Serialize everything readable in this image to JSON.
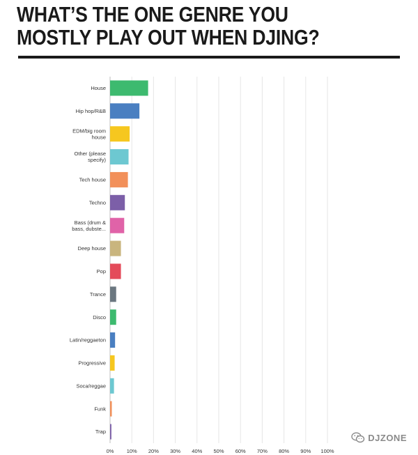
{
  "chart_data": {
    "type": "bar",
    "orientation": "horizontal",
    "title": "WHAT’S THE ONE GENRE YOU MOSTLY PLAY OUT WHEN DJING?",
    "xlabel": "",
    "ylabel": "",
    "xlim": [
      0,
      100
    ],
    "x_tick_labels": [
      "0%",
      "10%",
      "20%",
      "30%",
      "40%",
      "50%",
      "60%",
      "70%",
      "80%",
      "90%",
      "100%"
    ],
    "grid": true,
    "legend": "none",
    "categories": [
      [
        "House"
      ],
      [
        "Hip hop/R&B"
      ],
      [
        "EDM/big room",
        "house"
      ],
      [
        "Other (please",
        "specify)"
      ],
      [
        "Tech house"
      ],
      [
        "Techno"
      ],
      [
        "Bass (drum &",
        "bass, dubste..."
      ],
      [
        "Deep house"
      ],
      [
        "Pop"
      ],
      [
        "Trance"
      ],
      [
        "Disco"
      ],
      [
        "Latin/reggaeton"
      ],
      [
        "Progressive"
      ],
      [
        "Soca/reggae"
      ],
      [
        "Funk"
      ],
      [
        "Trap"
      ]
    ],
    "values": [
      17.5,
      13.5,
      9,
      8.5,
      8.2,
      6.8,
      6.5,
      5,
      5,
      2.8,
      2.8,
      2.3,
      2.1,
      1.8,
      0.8,
      0.6
    ],
    "colors": [
      "#3dba6f",
      "#4a7fc1",
      "#f6c71f",
      "#6dc8d1",
      "#f2905a",
      "#7c5fa8",
      "#e063a8",
      "#c9b57e",
      "#e44b5a",
      "#6b7780",
      "#3dba6f",
      "#4a7fc1",
      "#f6c71f",
      "#6dc8d1",
      "#f2905a",
      "#7c5fa8"
    ]
  },
  "watermark": {
    "icon": "wechat-icon",
    "text": "DJZONE"
  }
}
